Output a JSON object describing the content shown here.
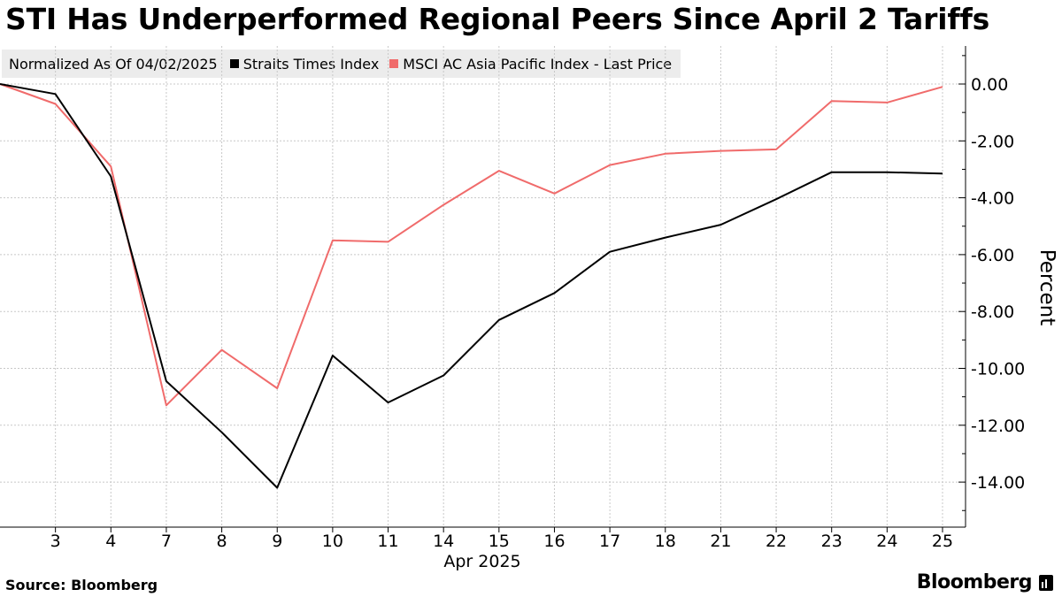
{
  "chart_data": {
    "type": "line",
    "title": "STI Has Underperformed Regional Peers Since April 2 Tariffs",
    "note": "Normalized As Of 04/02/2025",
    "ylabel": "Percent",
    "xlabel": "Apr 2025",
    "ylim": [
      -15.5,
      1.5
    ],
    "yticks": [
      0,
      -2,
      -4,
      -6,
      -8,
      -10,
      -12,
      -14
    ],
    "ytick_labels": [
      "0.00",
      "-2.00",
      "-4.00",
      "-6.00",
      "-8.00",
      "-10.00",
      "-12.00",
      "-14.00"
    ],
    "categories": [
      "2",
      "3",
      "4",
      "7",
      "8",
      "9",
      "10",
      "11",
      "14",
      "15",
      "16",
      "17",
      "18",
      "21",
      "22",
      "23",
      "24",
      "25"
    ],
    "xtick_labels": [
      "3",
      "4",
      "7",
      "8",
      "9",
      "10",
      "11",
      "14",
      "15",
      "16",
      "17",
      "18",
      "21",
      "22",
      "23",
      "24",
      "25"
    ],
    "series": [
      {
        "name": "Straits Times Index",
        "color": "#000000",
        "values": [
          0.0,
          -0.35,
          -3.25,
          -10.45,
          -12.25,
          -14.2,
          -9.55,
          -11.2,
          -10.25,
          -8.3,
          -7.35,
          -5.9,
          -5.4,
          -4.95,
          -4.05,
          -3.1,
          -3.1,
          -3.15
        ]
      },
      {
        "name": "MSCI AC Asia Pacific Index - Last Price",
        "color": "#f06b6b",
        "values": [
          0.0,
          -0.7,
          -2.9,
          -11.3,
          -9.35,
          -10.7,
          -5.5,
          -5.55,
          -4.25,
          -3.05,
          -3.85,
          -2.85,
          -2.45,
          -2.35,
          -2.3,
          -0.6,
          -0.65,
          -0.1
        ]
      }
    ]
  },
  "footer": {
    "source": "Source: Bloomberg",
    "brand": "Bloomberg"
  }
}
